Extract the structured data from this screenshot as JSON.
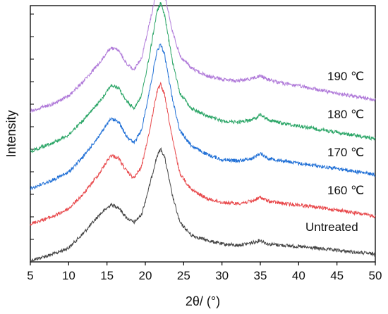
{
  "chart_data": {
    "type": "line",
    "title": "",
    "xlabel": "2θ/ (°)",
    "ylabel": "Intensity",
    "xlim": [
      5,
      50
    ],
    "xticks": [
      5,
      10,
      15,
      20,
      25,
      30,
      35,
      40,
      45,
      50
    ],
    "yticks_labeled": false,
    "grid": false,
    "legend": "inline labels at right",
    "series": [
      {
        "name": "Untreated",
        "color": "#444444",
        "points": [
          [
            5,
            0.0
          ],
          [
            8,
            0.05
          ],
          [
            10,
            0.1
          ],
          [
            12,
            0.22
          ],
          [
            14,
            0.36
          ],
          [
            15.5,
            0.44
          ],
          [
            16.5,
            0.42
          ],
          [
            17.5,
            0.34
          ],
          [
            18.5,
            0.3
          ],
          [
            19.5,
            0.36
          ],
          [
            20.5,
            0.58
          ],
          [
            21.5,
            0.82
          ],
          [
            22,
            0.88
          ],
          [
            22.5,
            0.82
          ],
          [
            23.5,
            0.52
          ],
          [
            24.5,
            0.3
          ],
          [
            26,
            0.2
          ],
          [
            28,
            0.16
          ],
          [
            30,
            0.13
          ],
          [
            32,
            0.12
          ],
          [
            34,
            0.14
          ],
          [
            35,
            0.16
          ],
          [
            36,
            0.13
          ],
          [
            38,
            0.12
          ],
          [
            40,
            0.11
          ],
          [
            45,
            0.08
          ],
          [
            50,
            0.05
          ]
        ]
      },
      {
        "name": "160 ℃",
        "color": "#e8474a",
        "points": [
          [
            5,
            0.0
          ],
          [
            8,
            0.06
          ],
          [
            10,
            0.12
          ],
          [
            12,
            0.24
          ],
          [
            14,
            0.4
          ],
          [
            15.5,
            0.54
          ],
          [
            16.5,
            0.52
          ],
          [
            17.5,
            0.42
          ],
          [
            18.5,
            0.36
          ],
          [
            19.5,
            0.45
          ],
          [
            20.5,
            0.72
          ],
          [
            21.5,
            1.04
          ],
          [
            22,
            1.1
          ],
          [
            22.5,
            1.02
          ],
          [
            23.5,
            0.68
          ],
          [
            24.5,
            0.4
          ],
          [
            26,
            0.27
          ],
          [
            28,
            0.2
          ],
          [
            30,
            0.17
          ],
          [
            32,
            0.16
          ],
          [
            34,
            0.18
          ],
          [
            35,
            0.21
          ],
          [
            36,
            0.18
          ],
          [
            38,
            0.16
          ],
          [
            40,
            0.15
          ],
          [
            45,
            0.11
          ],
          [
            50,
            0.06
          ]
        ]
      },
      {
        "name": "170 ℃",
        "color": "#1f6fd6",
        "points": [
          [
            5,
            0.0
          ],
          [
            8,
            0.07
          ],
          [
            10,
            0.13
          ],
          [
            12,
            0.26
          ],
          [
            14,
            0.42
          ],
          [
            15.5,
            0.55
          ],
          [
            16.5,
            0.53
          ],
          [
            17.5,
            0.42
          ],
          [
            18.5,
            0.36
          ],
          [
            19.5,
            0.46
          ],
          [
            20.5,
            0.76
          ],
          [
            21.5,
            1.08
          ],
          [
            22,
            1.14
          ],
          [
            22.5,
            1.06
          ],
          [
            23.5,
            0.72
          ],
          [
            24.5,
            0.46
          ],
          [
            26,
            0.34
          ],
          [
            28,
            0.27
          ],
          [
            30,
            0.23
          ],
          [
            32,
            0.22
          ],
          [
            34,
            0.24
          ],
          [
            35,
            0.28
          ],
          [
            36,
            0.24
          ],
          [
            38,
            0.22
          ],
          [
            40,
            0.2
          ],
          [
            45,
            0.16
          ],
          [
            50,
            0.11
          ]
        ]
      },
      {
        "name": "180 ℃",
        "color": "#2aa566",
        "points": [
          [
            5,
            0.0
          ],
          [
            8,
            0.07
          ],
          [
            10,
            0.13
          ],
          [
            12,
            0.25
          ],
          [
            14,
            0.39
          ],
          [
            15.5,
            0.52
          ],
          [
            16.5,
            0.5
          ],
          [
            17.5,
            0.4
          ],
          [
            18.5,
            0.34
          ],
          [
            19.5,
            0.44
          ],
          [
            20.5,
            0.74
          ],
          [
            21.5,
            1.1
          ],
          [
            22,
            1.17
          ],
          [
            22.5,
            1.08
          ],
          [
            23.5,
            0.72
          ],
          [
            24.5,
            0.46
          ],
          [
            26,
            0.34
          ],
          [
            28,
            0.28
          ],
          [
            30,
            0.24
          ],
          [
            32,
            0.23
          ],
          [
            34,
            0.25
          ],
          [
            35,
            0.29
          ],
          [
            36,
            0.25
          ],
          [
            38,
            0.22
          ],
          [
            40,
            0.2
          ],
          [
            45,
            0.15
          ],
          [
            50,
            0.1
          ]
        ]
      },
      {
        "name": "190 ℃",
        "color": "#b07ad9",
        "points": [
          [
            5,
            0.0
          ],
          [
            8,
            0.06
          ],
          [
            10,
            0.12
          ],
          [
            12,
            0.24
          ],
          [
            14,
            0.38
          ],
          [
            15.5,
            0.5
          ],
          [
            16.5,
            0.48
          ],
          [
            17.5,
            0.38
          ],
          [
            18.5,
            0.32
          ],
          [
            19.5,
            0.42
          ],
          [
            20.5,
            0.68
          ],
          [
            21.5,
            0.95
          ],
          [
            22,
            0.99
          ],
          [
            22.5,
            0.93
          ],
          [
            23.5,
            0.64
          ],
          [
            24.5,
            0.44
          ],
          [
            26,
            0.34
          ],
          [
            28,
            0.28
          ],
          [
            30,
            0.25
          ],
          [
            32,
            0.24
          ],
          [
            34,
            0.26
          ],
          [
            35,
            0.28
          ],
          [
            36,
            0.25
          ],
          [
            38,
            0.22
          ],
          [
            40,
            0.2
          ],
          [
            45,
            0.14
          ],
          [
            50,
            0.09
          ]
        ]
      }
    ]
  }
}
